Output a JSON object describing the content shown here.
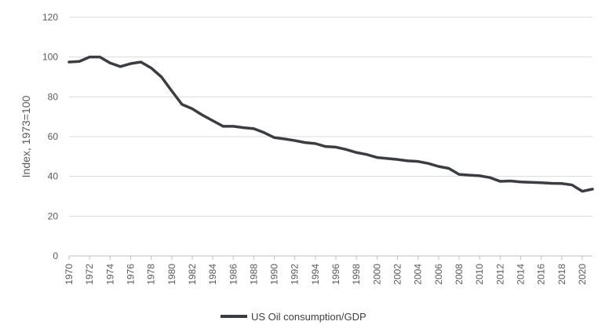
{
  "chart_data": {
    "type": "line",
    "title": "",
    "xlabel": "",
    "ylabel": "Index, 1973=100",
    "ylim": [
      0,
      120
    ],
    "yticks": [
      0,
      20,
      40,
      60,
      80,
      100,
      120
    ],
    "xlim": [
      1970,
      2021
    ],
    "xticks": [
      1970,
      1972,
      1974,
      1976,
      1978,
      1980,
      1982,
      1984,
      1986,
      1988,
      1990,
      1992,
      1994,
      1996,
      1998,
      2000,
      2002,
      2004,
      2006,
      2008,
      2010,
      2012,
      2014,
      2016,
      2018,
      2020
    ],
    "grid": true,
    "legend_position": "bottom",
    "series": [
      {
        "name": "US Oil consumption/GDP",
        "color": "#3a3d42",
        "x": [
          1970,
          1971,
          1972,
          1973,
          1974,
          1975,
          1976,
          1977,
          1978,
          1979,
          1980,
          1981,
          1982,
          1983,
          1984,
          1985,
          1986,
          1987,
          1988,
          1989,
          1990,
          1991,
          1992,
          1993,
          1994,
          1995,
          1996,
          1997,
          1998,
          1999,
          2000,
          2001,
          2002,
          2003,
          2004,
          2005,
          2006,
          2007,
          2008,
          2009,
          2010,
          2011,
          2012,
          2013,
          2014,
          2015,
          2016,
          2017,
          2018,
          2019,
          2020,
          2021
        ],
        "values": [
          97.5,
          97.8,
          100,
          100,
          97,
          95.2,
          96.7,
          97.5,
          94.5,
          90,
          83,
          76.2,
          74,
          70.8,
          68,
          65.2,
          65.2,
          64.5,
          64,
          62,
          59.5,
          58.8,
          58,
          57,
          56.5,
          55,
          54.7,
          53.5,
          52,
          51,
          49.5,
          49,
          48.5,
          47.8,
          47.5,
          46.5,
          45,
          44,
          41,
          40.6,
          40.3,
          39.4,
          37.5,
          37.7,
          37.2,
          37,
          36.8,
          36.5,
          36.4,
          35.7,
          32.5,
          33.6
        ]
      }
    ]
  }
}
